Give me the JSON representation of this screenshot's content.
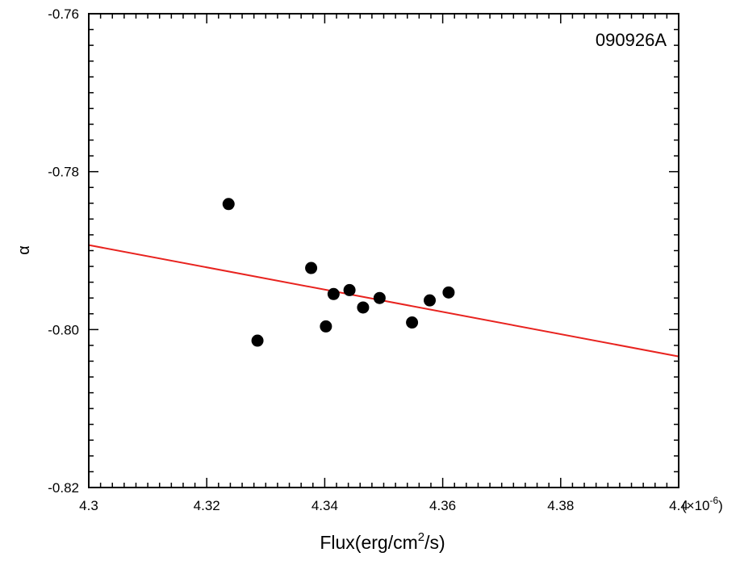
{
  "chart_data": {
    "type": "scatter",
    "title": "",
    "annotation": "090926A",
    "xlabel": "Flux(erg/cm",
    "xlabel_sup": "2",
    "xlabel_tail": "/s)",
    "ylabel": "α",
    "x_multiplier": "(×10",
    "x_multiplier_sup": "-6",
    "x_multiplier_tail": ")",
    "xlim": [
      4.3,
      4.4
    ],
    "ylim": [
      -0.82,
      -0.76
    ],
    "grid": false,
    "x_ticks": [
      4.3,
      4.32,
      4.34,
      4.36,
      4.38,
      4.4
    ],
    "x_tick_labels": [
      "4.3",
      "4.32",
      "4.34",
      "4.36",
      "4.38",
      "4.4"
    ],
    "y_ticks": [
      -0.82,
      -0.8,
      -0.78,
      -0.76
    ],
    "y_tick_labels": [
      "-0.82",
      "-0.80",
      "-0.78",
      "-0.76"
    ],
    "x_minor_step": 0.002,
    "y_minor_step": 0.002,
    "series": [
      {
        "kind": "points",
        "color": "#000000",
        "x": [
          4.3237,
          4.3286,
          4.3377,
          4.3415,
          4.3402,
          4.3442,
          4.3465,
          4.3493,
          4.3548,
          4.3578,
          4.361
        ],
        "y": [
          -0.7841,
          -0.8014,
          -0.7922,
          -0.7955,
          -0.7996,
          -0.795,
          -0.7972,
          -0.796,
          -0.7991,
          -0.7963,
          -0.7953
        ]
      },
      {
        "kind": "fit-line",
        "color": "#e8231f",
        "x": [
          4.3,
          4.4
        ],
        "y": [
          -0.7893,
          -0.8034
        ]
      }
    ]
  }
}
